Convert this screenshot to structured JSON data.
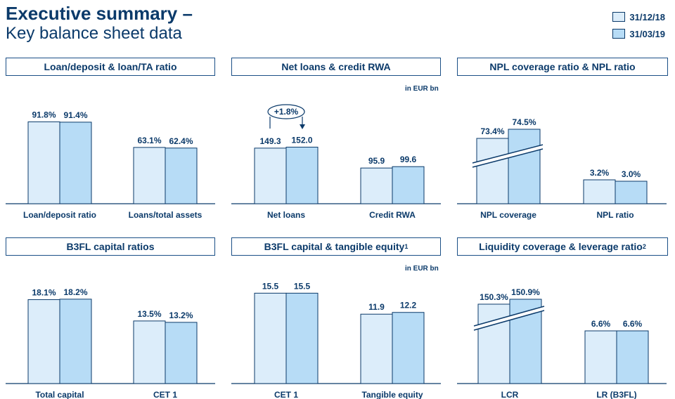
{
  "header": {
    "title_line1": "Executive summary –",
    "title_line2": "Key balance sheet data"
  },
  "legend": [
    {
      "label": "31/12/18",
      "color": "#dcedfa"
    },
    {
      "label": "31/03/19",
      "color": "#b7dcf6"
    }
  ],
  "colors": {
    "series1": "#dcedfa",
    "series2": "#b7dcf6",
    "outline": "#0b3a6a",
    "text": "#0b3a6a"
  },
  "chart_data": [
    {
      "type": "bar",
      "title": "Loan/deposit & loan/TA ratio",
      "unit_note": "",
      "categories": [
        "Loan/deposit ratio",
        "Loans/total assets"
      ],
      "series": [
        {
          "name": "31/12/18",
          "values": [
            91.8,
            63.1
          ]
        },
        {
          "name": "31/03/19",
          "values": [
            91.4,
            62.4
          ]
        }
      ],
      "labels": [
        [
          "91.8%",
          "63.1%"
        ],
        [
          "91.4%",
          "62.4%"
        ]
      ],
      "ylim": [
        0,
        100
      ]
    },
    {
      "type": "bar",
      "title": "Net loans & credit RWA",
      "unit_note": "in EUR bn",
      "categories": [
        "Net loans",
        "Credit RWA"
      ],
      "series": [
        {
          "name": "31/12/18",
          "values": [
            149.3,
            95.9
          ]
        },
        {
          "name": "31/03/19",
          "values": [
            152.0,
            99.6
          ]
        }
      ],
      "labels": [
        [
          "149.3",
          "95.9"
        ],
        [
          "152.0",
          "99.6"
        ]
      ],
      "annotation": "+1.8%",
      "ylim": [
        0,
        270
      ]
    },
    {
      "type": "bar",
      "title": "NPL coverage ratio & NPL ratio",
      "unit_note": "",
      "categories": [
        "NPL coverage",
        "NPL ratio"
      ],
      "series": [
        {
          "name": "31/12/18",
          "values": [
            73.4,
            3.2
          ]
        },
        {
          "name": "31/03/19",
          "values": [
            74.5,
            3.0
          ]
        }
      ],
      "labels": [
        [
          "73.4%",
          "3.2%"
        ],
        [
          "74.5%",
          "3.0%"
        ]
      ],
      "broken_axis_category": "NPL coverage"
    },
    {
      "type": "bar",
      "title": "B3FL capital ratios",
      "unit_note": "",
      "categories": [
        "Total capital",
        "CET 1"
      ],
      "series": [
        {
          "name": "31/12/18",
          "values": [
            18.1,
            13.5
          ]
        },
        {
          "name": "31/03/19",
          "values": [
            18.2,
            13.2
          ]
        }
      ],
      "labels": [
        [
          "18.1%",
          "13.5%"
        ],
        [
          "18.2%",
          "13.2%"
        ]
      ],
      "ylim": [
        0,
        20
      ]
    },
    {
      "type": "bar",
      "title": "B3FL capital & tangible equity",
      "title_sup": "1",
      "unit_note": "in EUR bn",
      "categories": [
        "CET 1",
        "Tangible equity"
      ],
      "series": [
        {
          "name": "31/12/18",
          "values": [
            15.5,
            11.9
          ]
        },
        {
          "name": "31/03/19",
          "values": [
            15.5,
            12.2
          ]
        }
      ],
      "labels": [
        [
          "15.5",
          "11.9"
        ],
        [
          "15.5",
          "12.2"
        ]
      ],
      "ylim": [
        0,
        17
      ]
    },
    {
      "type": "bar",
      "title": "Liquidity coverage & leverage ratio",
      "title_sup": "2",
      "unit_note": "",
      "categories": [
        "LCR",
        "LR (B3FL)"
      ],
      "series": [
        {
          "name": "31/12/18",
          "values": [
            150.3,
            6.6
          ]
        },
        {
          "name": "31/03/19",
          "values": [
            150.9,
            6.6
          ]
        }
      ],
      "labels": [
        [
          "150.3%",
          "6.6%"
        ],
        [
          "150.9%",
          "6.6%"
        ]
      ],
      "broken_axis_category": "LCR"
    }
  ]
}
